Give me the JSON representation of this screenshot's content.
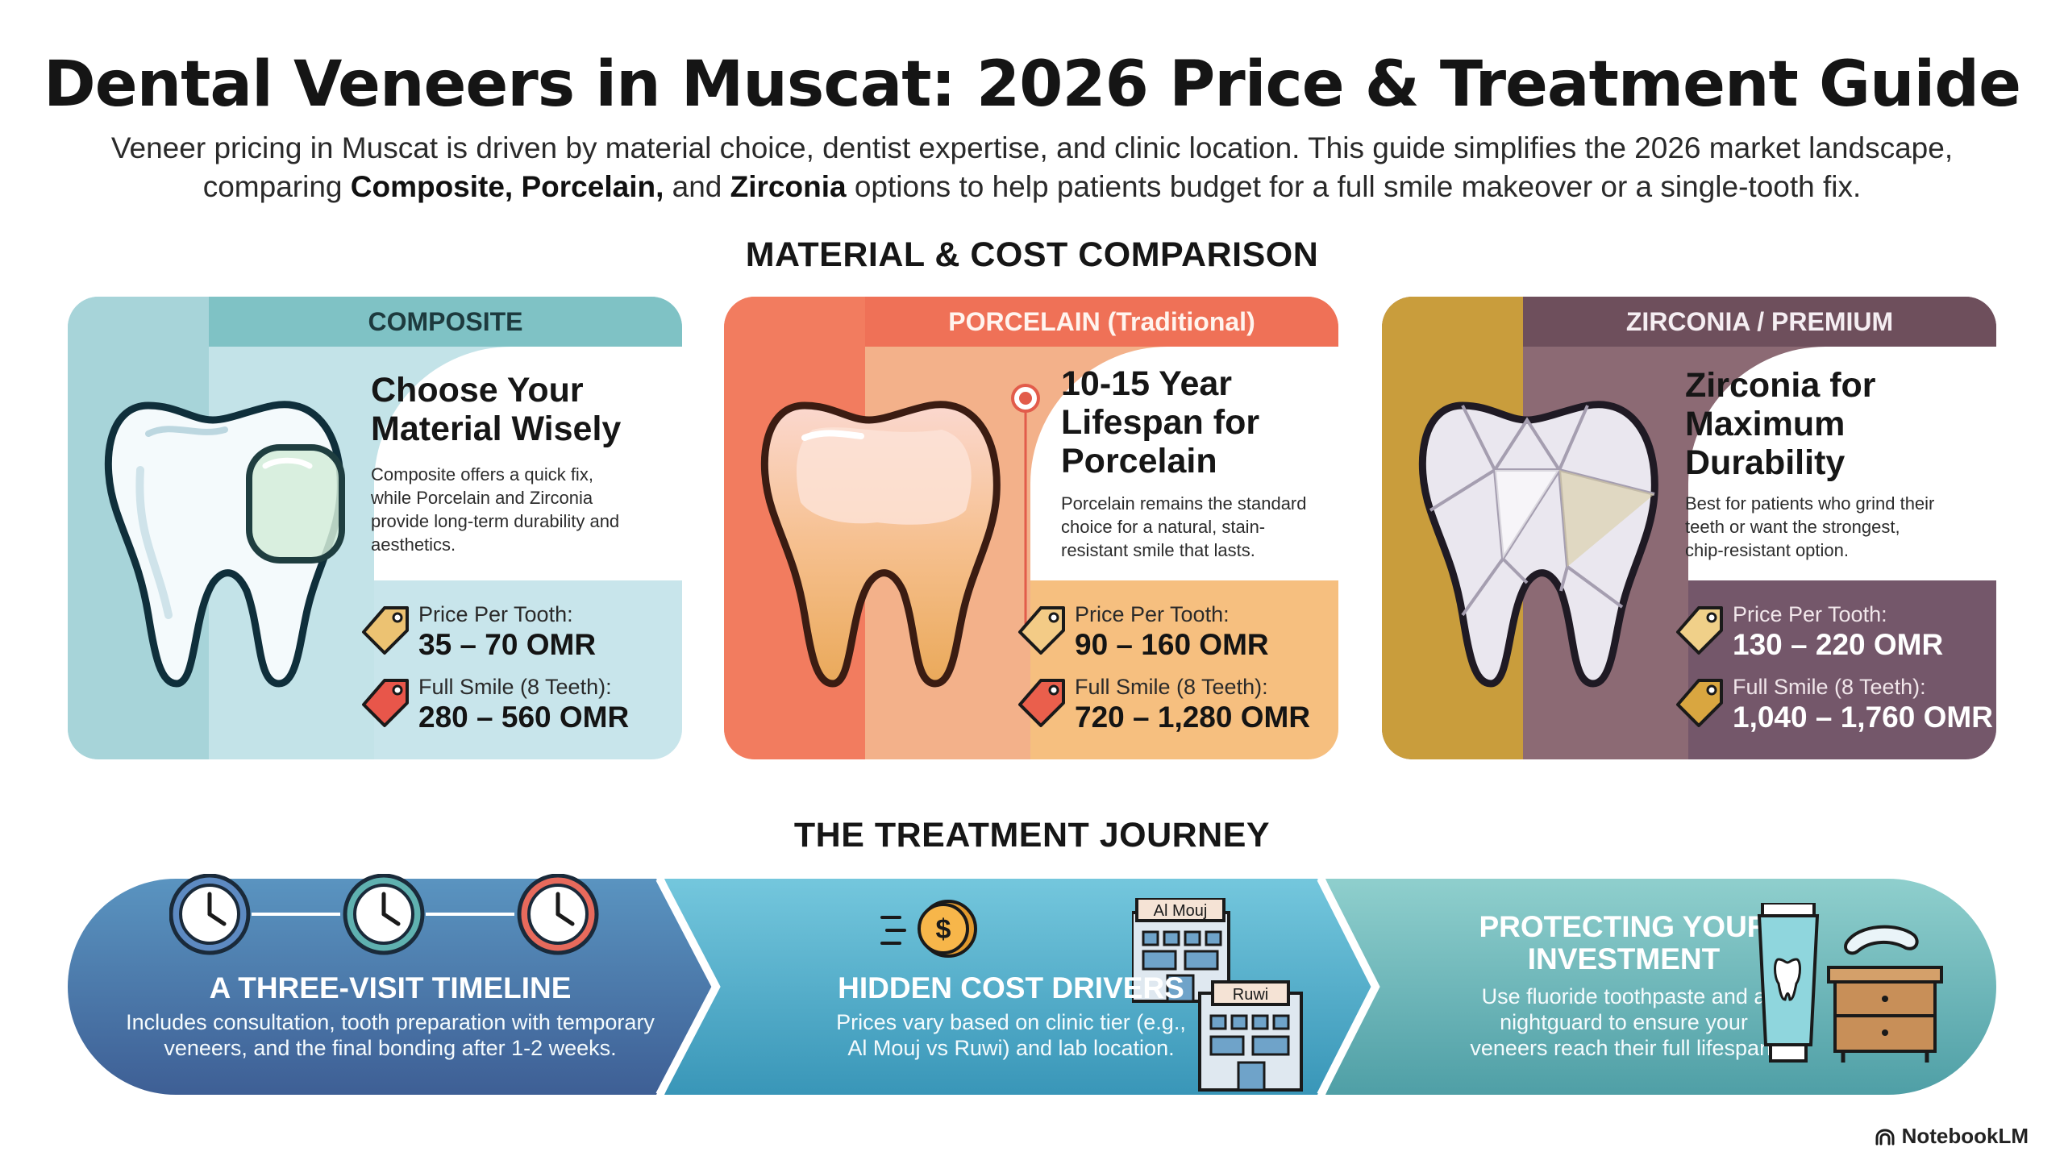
{
  "title": "Dental Veneers in Muscat: 2026 Price & Treatment Guide",
  "intro": {
    "line1": "Veneer pricing in Muscat is driven by material choice, dentist expertise, and clinic location. This guide simplifies the 2026 market landscape,",
    "line2_pre": "comparing ",
    "line2_bold1": "Composite,",
    "line2_sep1": " ",
    "line2_bold2": "Porcelain,",
    "line2_sep2": " and ",
    "line2_bold3": "Zirconia",
    "line2_post": " options to help patients budget for a full smile makeover or a single-tooth fix."
  },
  "comparison_heading": "MATERIAL & COST COMPARISON",
  "cards": [
    {
      "header": "COMPOSITE",
      "title_l1": "Choose Your",
      "title_l2": "Material Wisely",
      "desc_l1": "Composite offers a quick fix,",
      "desc_l2": "while Porcelain and Zirconia",
      "desc_l3": "provide long-term durability and",
      "desc_l4": "aesthetics.",
      "price_label": "Price Per Tooth:",
      "price_value": "35 – 70 OMR",
      "smile_label": "Full Smile (8 Teeth):",
      "smile_value": "280 – 560 OMR"
    },
    {
      "header": "PORCELAIN (Traditional)",
      "title_l1": "10-15 Year",
      "title_l2": "Lifespan for",
      "title_l3": "Porcelain",
      "desc_l1": "Porcelain remains the standard",
      "desc_l2": "choice for a natural, stain-",
      "desc_l3": "resistant smile that lasts.",
      "price_label": "Price Per Tooth:",
      "price_value": "90 – 160 OMR",
      "smile_label": "Full Smile (8 Teeth):",
      "smile_value": "720 – 1,280 OMR"
    },
    {
      "header": "ZIRCONIA / PREMIUM",
      "title_l1": "Zirconia for",
      "title_l2": "Maximum",
      "title_l3": "Durability",
      "desc_l1": "Best for patients who grind their",
      "desc_l2": "teeth or want the strongest,",
      "desc_l3": "chip-resistant option.",
      "price_label": "Price Per Tooth:",
      "price_value": "130 – 220 OMR",
      "smile_label": "Full Smile (8 Teeth):",
      "smile_value": "1,040 – 1,760 OMR"
    }
  ],
  "journey_heading": "THE TREATMENT JOURNEY",
  "steps": [
    {
      "title": "A THREE-VISIT TIMELINE",
      "desc_l1": "Includes consultation, tooth preparation with temporary",
      "desc_l2": "veneers, and the final bonding after 1-2 weeks."
    },
    {
      "title": "HIDDEN COST DRIVERS",
      "desc_l1": "Prices vary based on clinic tier (e.g.,",
      "desc_l2": "Al Mouj vs Ruwi) and lab location.",
      "clinic1": "Al Mouj",
      "clinic2": "Ruwi",
      "coin_symbol": "$"
    },
    {
      "title_l1": "PROTECTING YOUR",
      "title_l2": "INVESTMENT",
      "desc_l1": "Use fluoride toothpaste and a",
      "desc_l2": "nightguard to ensure your",
      "desc_l3": "veneers reach their full lifespan."
    }
  ],
  "brand": "NotebookLM",
  "colors": {
    "composite": "#7fc2c5",
    "porcelain": "#ef7157",
    "zirconia": "#6e4f5c",
    "journey_dark": "#3f6ea0",
    "journey_mid": "#4aa8c4",
    "journey_teal": "#5fb6b5"
  },
  "icons": [
    "tooth-icon",
    "price-tag-icon",
    "clock-icon",
    "coin-icon",
    "clinic-building-icon",
    "toothpaste-icon",
    "nightguard-icon",
    "nightstand-icon"
  ]
}
